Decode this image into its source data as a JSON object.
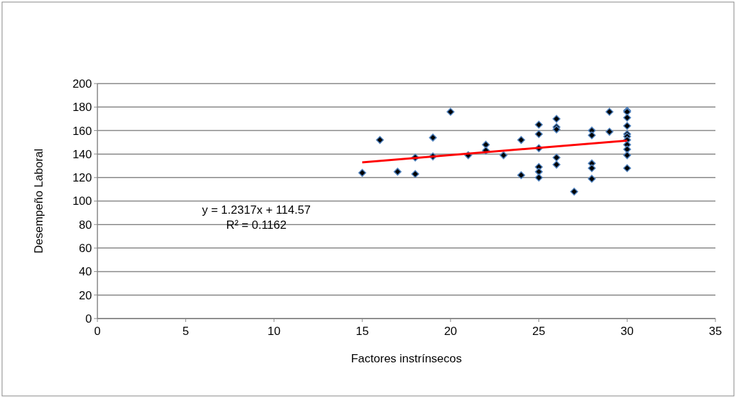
{
  "chart_data": {
    "type": "scatter",
    "xlabel": "Factores instrínsecos",
    "ylabel": "Desempeño Laboral",
    "xlim": [
      0,
      35
    ],
    "xticks": [
      0,
      5,
      10,
      15,
      20,
      25,
      30,
      35
    ],
    "ylim": [
      0,
      200
    ],
    "yticks": [
      0,
      20,
      40,
      60,
      80,
      100,
      120,
      140,
      160,
      180,
      200
    ],
    "grid": "y",
    "marker": "diamond",
    "series": [
      {
        "type": "scatter",
        "color": "#000000",
        "x": [
          15,
          16,
          17,
          18,
          18,
          19,
          19,
          20,
          21,
          22,
          22,
          23,
          24,
          24,
          25,
          25,
          25,
          25,
          25,
          25,
          26,
          26,
          26,
          26,
          26,
          27,
          28,
          28,
          28,
          28,
          28,
          29,
          29,
          30,
          30,
          30,
          30,
          30,
          30,
          30,
          30,
          30,
          30,
          30
        ],
        "values": [
          124,
          152,
          125,
          137,
          123,
          154,
          138,
          176,
          139,
          148,
          143,
          139,
          152,
          122,
          165,
          157,
          145,
          129,
          125,
          120,
          170,
          163,
          161,
          137,
          131,
          108,
          160,
          156,
          132,
          128,
          119,
          176,
          159,
          177,
          176,
          171,
          164,
          157,
          155,
          152,
          148,
          144,
          139,
          128
        ]
      },
      {
        "type": "line",
        "color": "#ff0000",
        "x": [
          15,
          30
        ],
        "values": [
          133,
          151.5
        ],
        "marker": "none"
      }
    ],
    "annotations": [
      "y = 1.2317x + 114.57",
      "R² = 0.1162"
    ]
  }
}
